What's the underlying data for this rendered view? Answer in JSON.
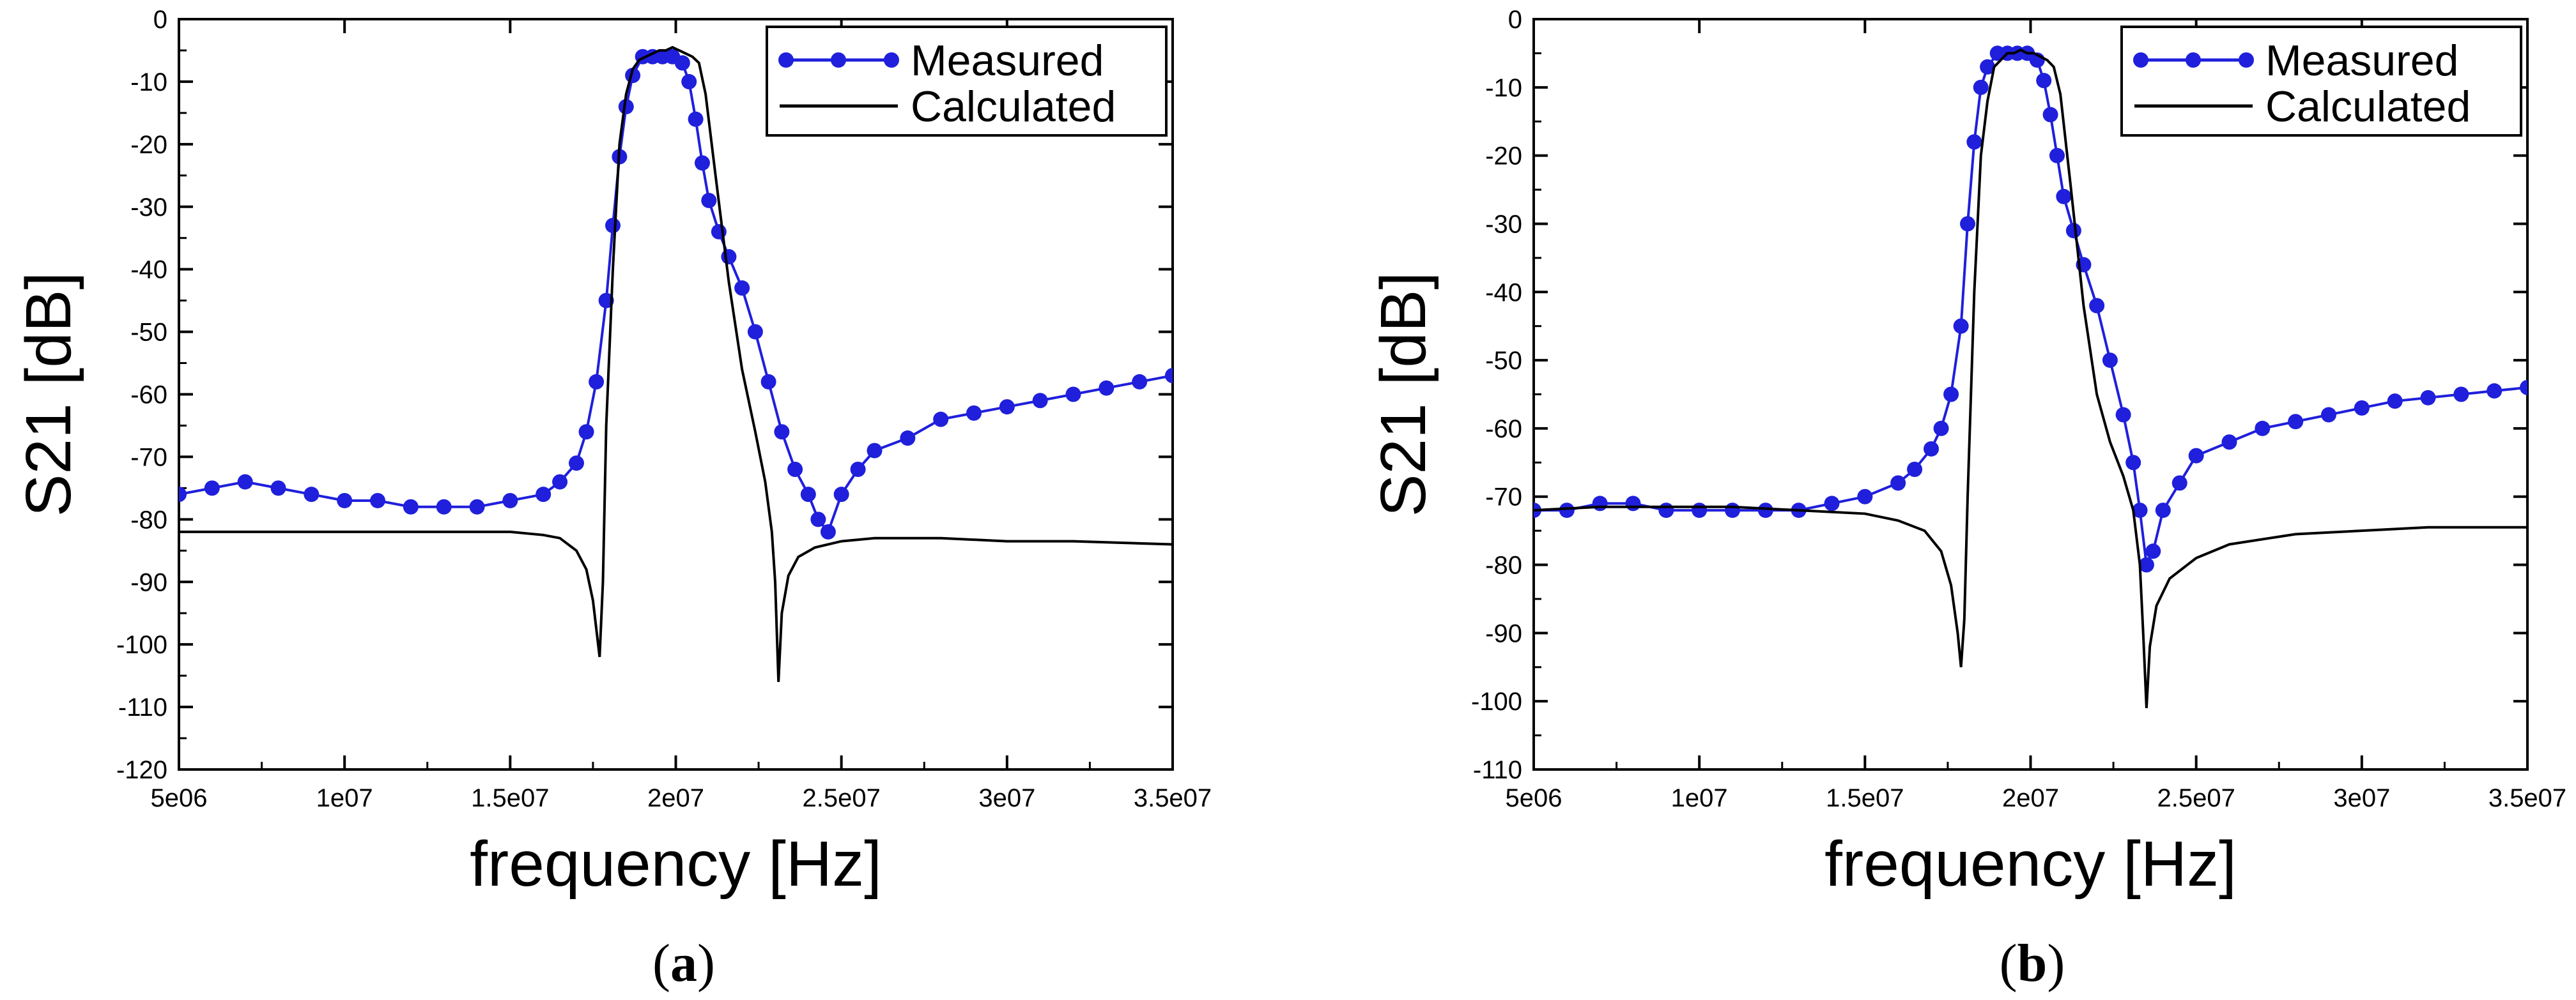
{
  "figure": {
    "panels": [
      "a",
      "b"
    ]
  },
  "captions": {
    "a": {
      "open": "(",
      "letter": "a",
      "close": ")"
    },
    "b": {
      "open": "(",
      "letter": "b",
      "close": ")"
    }
  },
  "colors": {
    "measured": "#1f1fdc",
    "calculated": "#000000",
    "axis": "#000000"
  },
  "chart_data": [
    {
      "panel": "a",
      "type": "line",
      "xlabel": "frequency [Hz]",
      "ylabel": "S21 [dB]",
      "xlim": [
        5000000,
        35000000
      ],
      "ylim": [
        -120,
        0
      ],
      "xticks": [
        5000000,
        10000000,
        15000000,
        20000000,
        25000000,
        30000000,
        35000000
      ],
      "xtick_labels": [
        "5e06",
        "1e07",
        "1.5e07",
        "2e07",
        "2.5e07",
        "3e07",
        "3.5e07"
      ],
      "yticks": [
        0,
        -10,
        -20,
        -30,
        -40,
        -50,
        -60,
        -70,
        -80,
        -90,
        -100,
        -110,
        -120
      ],
      "ytick_labels": [
        "0",
        "-10",
        "-20",
        "-30",
        "-40",
        "-50",
        "-60",
        "-70",
        "-80",
        "-90",
        "-100",
        "-110",
        "-120"
      ],
      "grid": false,
      "legend": {
        "position": "top-right",
        "entries": [
          "Measured",
          "Calculated"
        ]
      },
      "series": [
        {
          "name": "Measured",
          "style": "line+markers",
          "x": [
            5000000,
            6000000,
            7000000,
            8000000,
            9000000,
            10000000,
            11000000,
            12000000,
            13000000,
            14000000,
            15000000,
            16000000,
            16500000,
            17000000,
            17300000,
            17600000,
            17900000,
            18100000,
            18300000,
            18500000,
            18700000,
            19000000,
            19300000,
            19600000,
            19900000,
            20200000,
            20400000,
            20600000,
            20800000,
            21000000,
            21300000,
            21600000,
            22000000,
            22400000,
            22800000,
            23200000,
            23600000,
            24000000,
            24300000,
            24600000,
            25000000,
            25500000,
            26000000,
            27000000,
            28000000,
            29000000,
            30000000,
            31000000,
            32000000,
            33000000,
            34000000,
            35000000
          ],
          "y": [
            -76,
            -75,
            -74,
            -75,
            -76,
            -77,
            -77,
            -78,
            -78,
            -78,
            -77,
            -76,
            -74,
            -71,
            -66,
            -58,
            -45,
            -33,
            -22,
            -14,
            -9,
            -6,
            -6,
            -6,
            -6,
            -7,
            -10,
            -16,
            -23,
            -29,
            -34,
            -38,
            -43,
            -50,
            -58,
            -66,
            -72,
            -76,
            -80,
            -82,
            -76,
            -72,
            -69,
            -67,
            -64,
            -63,
            -62,
            -61,
            -60,
            -59,
            -58,
            -57
          ]
        },
        {
          "name": "Calculated",
          "style": "line",
          "x": [
            5000000,
            7000000,
            9000000,
            11000000,
            13000000,
            15000000,
            16000000,
            16500000,
            17000000,
            17300000,
            17500000,
            17700000,
            17800000,
            17900000,
            18100000,
            18300000,
            18500000,
            18700000,
            18900000,
            19100000,
            19300000,
            19500000,
            19700000,
            19900000,
            20100000,
            20300000,
            20500000,
            20700000,
            20900000,
            21200000,
            21600000,
            22000000,
            22400000,
            22700000,
            22900000,
            23000000,
            23100000,
            23200000,
            23400000,
            23700000,
            24200000,
            25000000,
            26000000,
            28000000,
            30000000,
            32000000,
            35000000
          ],
          "y": [
            -82,
            -82,
            -82,
            -82,
            -82,
            -82,
            -82.5,
            -83,
            -85,
            -88,
            -93,
            -102,
            -90,
            -65,
            -40,
            -20,
            -12,
            -8,
            -6.5,
            -6,
            -5.5,
            -5,
            -5,
            -4.5,
            -5,
            -5.5,
            -6,
            -7,
            -12,
            -25,
            -42,
            -56,
            -66,
            -74,
            -82,
            -90,
            -106,
            -95,
            -89,
            -86,
            -84.5,
            -83.5,
            -83,
            -83,
            -83.5,
            -83.5,
            -84
          ]
        }
      ]
    },
    {
      "panel": "b",
      "type": "line",
      "xlabel": "frequency [Hz]",
      "ylabel": "S21 [dB]",
      "xlim": [
        5000000,
        35000000
      ],
      "ylim": [
        -110,
        0
      ],
      "xticks": [
        5000000,
        10000000,
        15000000,
        20000000,
        25000000,
        30000000,
        35000000
      ],
      "xtick_labels": [
        "5e06",
        "1e07",
        "1.5e07",
        "2e07",
        "2.5e07",
        "3e07",
        "3.5e07"
      ],
      "yticks": [
        0,
        -10,
        -20,
        -30,
        -40,
        -50,
        -60,
        -70,
        -80,
        -90,
        -100,
        -110
      ],
      "ytick_labels": [
        "0",
        "-10",
        "-20",
        "-30",
        "-40",
        "-50",
        "-60",
        "-70",
        "-80",
        "-90",
        "-100",
        "-110"
      ],
      "grid": false,
      "legend": {
        "position": "top-right",
        "entries": [
          "Measured",
          "Calculated"
        ]
      },
      "series": [
        {
          "name": "Measured",
          "style": "line+markers",
          "x": [
            5000000,
            6000000,
            7000000,
            8000000,
            9000000,
            10000000,
            11000000,
            12000000,
            13000000,
            14000000,
            15000000,
            16000000,
            16500000,
            17000000,
            17300000,
            17600000,
            17900000,
            18100000,
            18300000,
            18500000,
            18700000,
            19000000,
            19300000,
            19600000,
            19900000,
            20200000,
            20400000,
            20600000,
            20800000,
            21000000,
            21300000,
            21600000,
            22000000,
            22400000,
            22800000,
            23100000,
            23300000,
            23500000,
            23700000,
            24000000,
            24500000,
            25000000,
            26000000,
            27000000,
            28000000,
            29000000,
            30000000,
            31000000,
            32000000,
            33000000,
            34000000,
            35000000
          ],
          "y": [
            -72,
            -72,
            -71,
            -71,
            -72,
            -72,
            -72,
            -72,
            -72,
            -71,
            -70,
            -68,
            -66,
            -63,
            -60,
            -55,
            -45,
            -30,
            -18,
            -10,
            -7,
            -5,
            -5,
            -5,
            -5,
            -6,
            -9,
            -14,
            -20,
            -26,
            -31,
            -36,
            -42,
            -50,
            -58,
            -65,
            -72,
            -80,
            -78,
            -72,
            -68,
            -64,
            -62,
            -60,
            -59,
            -58,
            -57,
            -56,
            -55.5,
            -55,
            -54.5,
            -54
          ]
        },
        {
          "name": "Calculated",
          "style": "line",
          "x": [
            5000000,
            7000000,
            9000000,
            11000000,
            13000000,
            15000000,
            16000000,
            16800000,
            17300000,
            17600000,
            17800000,
            17900000,
            18000000,
            18100000,
            18300000,
            18500000,
            18700000,
            18900000,
            19100000,
            19300000,
            19500000,
            19700000,
            19900000,
            20100000,
            20300000,
            20500000,
            20700000,
            20900000,
            21200000,
            21600000,
            22000000,
            22400000,
            22800000,
            23100000,
            23300000,
            23400000,
            23500000,
            23600000,
            23800000,
            24200000,
            25000000,
            26000000,
            28000000,
            30000000,
            32000000,
            35000000
          ],
          "y": [
            -72,
            -71.5,
            -71.5,
            -71.5,
            -72,
            -72.5,
            -73.5,
            -75,
            -78,
            -83,
            -90,
            -95,
            -88,
            -70,
            -40,
            -20,
            -12,
            -7,
            -6,
            -5,
            -5,
            -4.5,
            -5,
            -5,
            -5.5,
            -6,
            -7,
            -11,
            -24,
            -42,
            -55,
            -62,
            -67,
            -72,
            -80,
            -90,
            -101,
            -92,
            -86,
            -82,
            -79,
            -77,
            -75.5,
            -75,
            -74.5,
            -74.5
          ]
        }
      ]
    }
  ]
}
